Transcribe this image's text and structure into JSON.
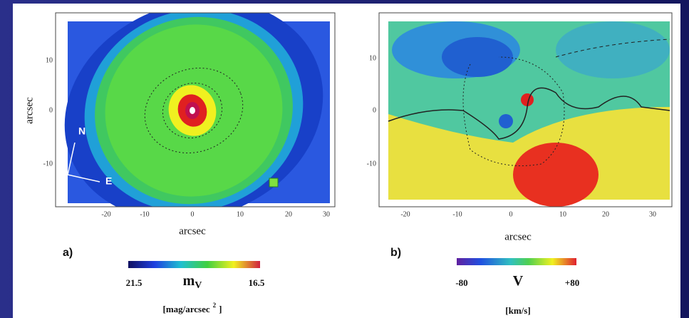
{
  "panels": [
    {
      "label": "a)",
      "x_axis_label": "arcsec",
      "y_axis_label": "arcsec",
      "xticks": [
        "-20",
        "-10",
        "0",
        "10",
        "20",
        "30"
      ],
      "yticks": [
        "10",
        "0",
        "-10"
      ],
      "compass": [
        "N",
        "E"
      ],
      "colorbar": {
        "min_label": "21.5",
        "symbol": "m",
        "subscript": "V",
        "max_label": "16.5",
        "unit": "[mag/arcsec",
        "unit_sup": "2",
        "unit_end": "]"
      }
    },
    {
      "label": "b)",
      "x_axis_label": "arcsec",
      "xticks": [
        "-20",
        "-10",
        "0",
        "10",
        "20",
        "30"
      ],
      "yticks": [
        "10",
        "0",
        "-10"
      ],
      "colorbar": {
        "min_label": "-80",
        "symbol": "V",
        "max_label": "+80",
        "unit": "[km/s]"
      }
    }
  ]
}
